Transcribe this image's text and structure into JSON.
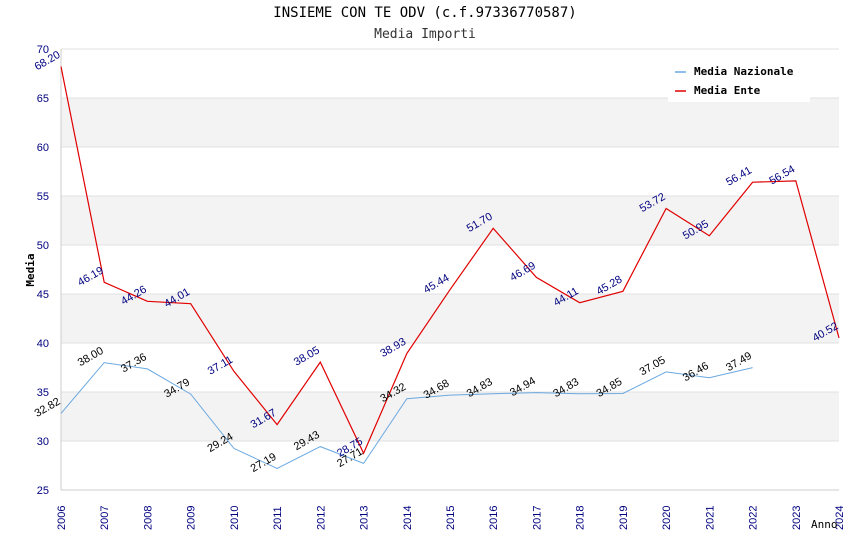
{
  "chart_data": {
    "type": "line",
    "title": "INSIEME CON TE ODV (c.f.97336770587)",
    "subtitle": "Media Importi",
    "ylabel": "Media",
    "xlabel": "Anno",
    "ylim": [
      25,
      70
    ],
    "yticks": [
      25,
      30,
      35,
      40,
      45,
      50,
      55,
      60,
      65,
      70
    ],
    "x": [
      "2006",
      "2007",
      "2008",
      "2009",
      "2010",
      "2011",
      "2012",
      "2013",
      "2014",
      "2015",
      "2016",
      "2017",
      "2018",
      "2019",
      "2020",
      "2021",
      "2022",
      "2023",
      "2024"
    ],
    "grid": "horizontal bands",
    "legend": "top-right",
    "series": [
      {
        "name": "Media Nazionale",
        "color": "#6aa8e0",
        "values": [
          32.82,
          38.0,
          37.36,
          34.79,
          29.24,
          27.19,
          29.43,
          27.71,
          34.32,
          34.68,
          34.83,
          34.94,
          34.83,
          34.85,
          37.05,
          36.46,
          37.49,
          null,
          null
        ],
        "labels": [
          "32.82",
          "38.00",
          "37.36",
          "34.79",
          "29.24",
          "27.19",
          "29.43",
          "27.71",
          "34.32",
          "34.68",
          "34.83",
          "34.94",
          "34.83",
          "34.85",
          "37.05",
          "36.46",
          "37.49",
          null,
          null
        ]
      },
      {
        "name": "Media Ente",
        "color": "#e00000",
        "values": [
          68.2,
          46.19,
          44.26,
          44.01,
          37.11,
          31.67,
          38.05,
          28.75,
          38.93,
          45.44,
          51.7,
          46.69,
          44.11,
          45.28,
          53.72,
          50.95,
          56.41,
          56.54,
          40.52
        ],
        "labels": [
          "68.20",
          "46.19",
          "44.26",
          "44.01",
          "37.11",
          "31.67",
          "38.05",
          "28.75",
          "38.93",
          "45.44",
          "51.70",
          "46.69",
          "44.11",
          "45.28",
          "53.72",
          "50.95",
          "56.41",
          "56.54",
          "40.52"
        ]
      }
    ]
  }
}
